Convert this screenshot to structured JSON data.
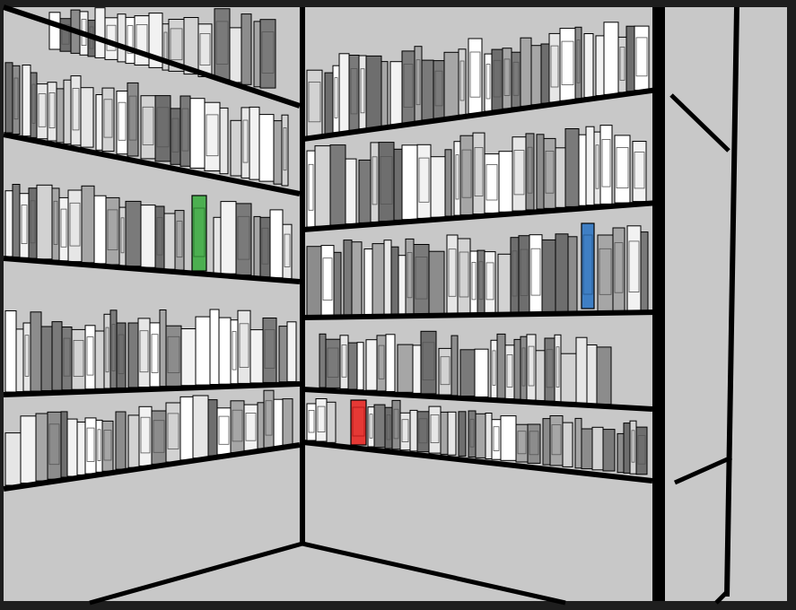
{
  "scene": {
    "type": "point-and-click room view",
    "frame_color": "#1e1e1e",
    "wall_color": "#c8c8c8",
    "line_color": "#000000",
    "book_palette": [
      "#ffffff",
      "#f2f2f2",
      "#e6e6e6",
      "#d2d2d2",
      "#a6a6a6",
      "#8c8c8c",
      "#7a7a7a",
      "#6e6e6e"
    ]
  },
  "highlighted_books": [
    {
      "name": "green-book",
      "color": "#4caf50",
      "shelf": "left-row-3"
    },
    {
      "name": "blue-book",
      "color": "#3f7fc4",
      "shelf": "right-row-3"
    },
    {
      "name": "red-book",
      "color": "#e53935",
      "shelf": "right-row-5"
    }
  ]
}
